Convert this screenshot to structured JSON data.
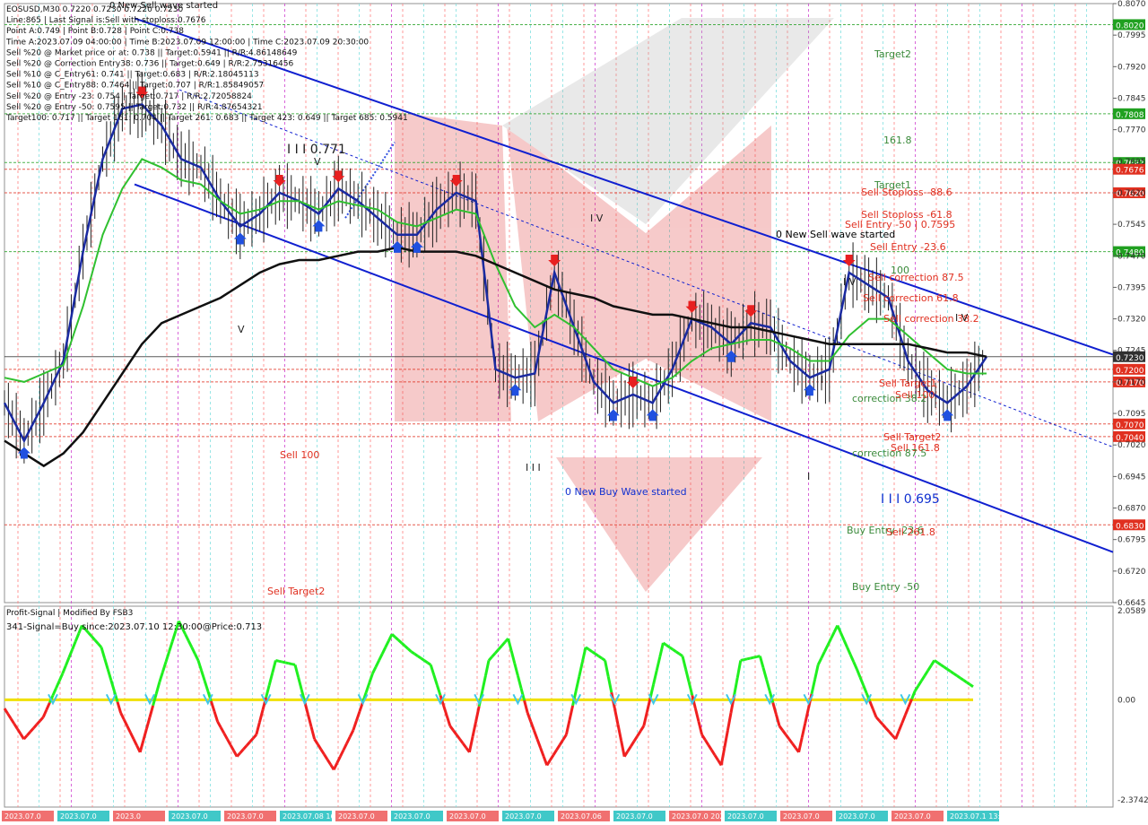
{
  "info_lines": [
    "EOSUSD,M30  0.7220 0.7230 0.7220 0.7230",
    "Line:865 | Last Signal is:Sell with stoploss:0.7676",
    "Point A:0.749 | Point B:0.728 | Point C:0.738",
    "Time A:2023.07.09 04:00:00 | Time B:2023.07.09 12:00:00 | Time C:2023.07.09 20:30:00",
    "Sell %20 @ Market price or at: 0.738 || Target:0.5941 || R/R:4.86148649",
    "Sell %20 @ Correction Entry38: 0.736 || Target:0.649 | R/R:2.75316456",
    "Sell %10 @ C_Entry61: 0.741 || Target:0.683 | R/R:2.18045113",
    "Sell %10 @ C_Entry88: 0.7464 || Target:0.707 | R/R:1.85849057",
    "Sell %20 @ Entry -23: 0.754 | Target:0.717 | R/R:2.72058824",
    "Sell %20 @ Entry -50: 0.7595 || Target:0.732 || R/R:4.87654321",
    "Target100: 0.717 || Target 161: 0.704 || Target 261: 0.683 || Target 423: 0.649 || Target 685: 0.5941"
  ],
  "top_label": "0 New Sell wave started",
  "indicator": {
    "title": "Profit-Signal | Modified By FSB3",
    "signal": "341-Signal=Buy since:2023.07.10 12:30:00@Price:0.713",
    "ticks": [
      "2.0589",
      "0.00",
      "-2.3742"
    ]
  },
  "price_ticks": [
    "0.8070",
    "0.7995",
    "0.7920",
    "0.7845",
    "0.7770",
    "0.7695",
    "0.7620",
    "0.7545",
    "0.7470",
    "0.7395",
    "0.7320",
    "0.7245",
    "0.7170",
    "0.7095",
    "0.7020",
    "0.6945",
    "0.6870",
    "0.6795",
    "0.6720",
    "0.6645"
  ],
  "price_badges": [
    {
      "label": "0.8020",
      "color": "#20a020"
    },
    {
      "label": "0.7808",
      "color": "#20a020"
    },
    {
      "label": "0.7692",
      "color": "#20a020"
    },
    {
      "label": "0.7676",
      "color": "#e03020"
    },
    {
      "label": "0.7620",
      "color": "#e03020"
    },
    {
      "label": "0.7480",
      "color": "#20a020"
    },
    {
      "label": "0.7230",
      "color": "#303030"
    },
    {
      "label": "0.7200",
      "color": "#e03020"
    },
    {
      "label": "0.7170",
      "color": "#e03020"
    },
    {
      "label": "0.7070",
      "color": "#e03020"
    },
    {
      "label": "0.7040",
      "color": "#e03020"
    },
    {
      "label": "0.6830",
      "color": "#e03020"
    }
  ],
  "level_labels": [
    {
      "text": "Target2",
      "color": "#3a8a3a"
    },
    {
      "text": "161.8",
      "color": "#3a8a3a"
    },
    {
      "text": "Target1",
      "color": "#3a8a3a"
    },
    {
      "text": "Sell Stoploss -88.6",
      "color": "#e03020"
    },
    {
      "text": "Sell Stoploss -61.8",
      "color": "#e03020"
    },
    {
      "text": "Sell Entry -50 | 0.7595",
      "color": "#e03020"
    },
    {
      "text": "0 New Sell wave started",
      "color": "#000000"
    },
    {
      "text": "Sell Entry -23.6",
      "color": "#e03020"
    },
    {
      "text": "100",
      "color": "#3a8a3a"
    },
    {
      "text": "Sell correction 87.5",
      "color": "#e03020"
    },
    {
      "text": "Sell correction 61.8",
      "color": "#e03020"
    },
    {
      "text": "Sell correction 38.2",
      "color": "#e03020"
    },
    {
      "text": "Sell Target1",
      "color": "#e03020"
    },
    {
      "text": "correction 38.2",
      "color": "#3a8a3a"
    },
    {
      "text": "Sell 100",
      "color": "#e03020"
    },
    {
      "text": "Sell Target2",
      "color": "#e03020"
    },
    {
      "text": "Sell 161.8",
      "color": "#e03020"
    },
    {
      "text": "correction 87.5",
      "color": "#3a8a3a"
    },
    {
      "text": "Buy Entry -23.6",
      "color": "#3a8a3a"
    },
    {
      "text": "Sell 261.8",
      "color": "#e03020"
    },
    {
      "text": "Buy Entry -50",
      "color": "#3a8a3a"
    },
    {
      "text": "Sell 100",
      "color": "#e03020"
    },
    {
      "text": "Sell Target2",
      "color": "#e03020"
    }
  ],
  "wave_labels": [
    "I I I 0.771",
    "I V",
    "I I I 0.695",
    "I I I",
    "0 New Buy Wave started",
    "I V",
    "V",
    "I V",
    "V",
    "I",
    "I"
  ],
  "time_labels": [
    "2023.07.0",
    "2023.07.0",
    "2023.0",
    "2023.07.0",
    "2023.07.0",
    "2023.07.08 16:30",
    "2023.07.0",
    "2023.07.0",
    "2023.07.0",
    "2023.07.0",
    "2023.07.06",
    "2023.07.0",
    "2023.07.0 2023.07.0",
    "2023.07.0",
    "2023.07.0",
    "2023.07.0",
    "2023.07.0",
    "2023.07.1 13:00"
  ],
  "chart_data": {
    "type": "line",
    "symbol": "EOSUSD",
    "timeframe": "M30",
    "ylim": [
      0.6645,
      0.807
    ],
    "series": [
      {
        "name": "",
        "values": [
          0.712,
          0.703,
          0.712,
          0.722,
          0.748,
          0.77,
          0.782,
          0.783,
          0.778,
          0.77,
          0.768,
          0.76,
          0.754,
          0.757,
          0.762,
          0.76,
          0.757,
          0.763,
          0.76,
          0.756,
          0.752,
          0.752,
          0.758,
          0.762,
          0.76,
          0.72,
          0.718,
          0.719,
          0.743,
          0.73,
          0.717,
          0.712,
          0.714,
          0.712,
          0.72,
          0.732,
          0.73,
          0.726,
          0.731,
          0.73,
          0.722,
          0.718,
          0.72,
          0.743,
          0.74,
          0.737,
          0.722,
          0.715,
          0.712,
          0.716,
          0.723
        ]
      },
      {
        "name": "",
        "values": [
          0.718,
          0.717,
          0.719,
          0.721,
          0.735,
          0.752,
          0.763,
          0.77,
          0.768,
          0.765,
          0.764,
          0.76,
          0.757,
          0.758,
          0.76,
          0.76,
          0.758,
          0.76,
          0.759,
          0.758,
          0.755,
          0.754,
          0.756,
          0.758,
          0.757,
          0.745,
          0.735,
          0.73,
          0.733,
          0.73,
          0.725,
          0.72,
          0.718,
          0.716,
          0.718,
          0.722,
          0.725,
          0.726,
          0.727,
          0.727,
          0.725,
          0.722,
          0.722,
          0.728,
          0.732,
          0.732,
          0.728,
          0.724,
          0.72,
          0.719,
          0.719
        ]
      },
      {
        "name": "",
        "values": [
          0.703,
          0.7,
          0.697,
          0.7,
          0.705,
          0.712,
          0.719,
          0.726,
          0.731,
          0.733,
          0.735,
          0.737,
          0.74,
          0.743,
          0.745,
          0.746,
          0.746,
          0.747,
          0.748,
          0.748,
          0.749,
          0.748,
          0.748,
          0.748,
          0.747,
          0.745,
          0.743,
          0.741,
          0.739,
          0.738,
          0.737,
          0.735,
          0.734,
          0.733,
          0.733,
          0.732,
          0.731,
          0.73,
          0.73,
          0.729,
          0.728,
          0.727,
          0.726,
          0.726,
          0.726,
          0.726,
          0.726,
          0.725,
          0.724,
          0.724,
          0.723
        ]
      }
    ],
    "oscillator": {
      "ylim": [
        -2.3742,
        2.0589
      ],
      "values": [
        -0.2,
        -0.9,
        -0.4,
        0.6,
        1.7,
        1.2,
        -0.3,
        -1.2,
        0.4,
        1.8,
        0.9,
        -0.5,
        -1.3,
        -0.8,
        0.9,
        0.8,
        -0.9,
        -1.6,
        -0.7,
        0.6,
        1.5,
        1.1,
        0.8,
        -0.6,
        -1.2,
        0.9,
        1.4,
        -0.3,
        -1.5,
        -0.8,
        1.2,
        0.9,
        -1.3,
        -0.6,
        1.3,
        1.0,
        -0.8,
        -1.5,
        0.9,
        1.0,
        -0.6,
        -1.2,
        0.8,
        1.7,
        0.7,
        -0.4,
        -0.9,
        0.2,
        0.9,
        0.6,
        0.3
      ]
    }
  }
}
